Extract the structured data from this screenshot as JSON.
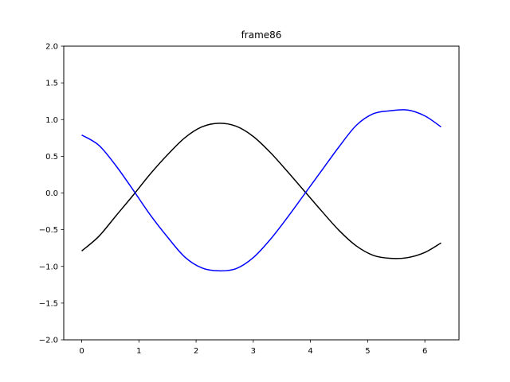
{
  "chart_data": {
    "type": "line",
    "title": "frame86",
    "xlabel": "",
    "ylabel": "",
    "xlim": [
      -0.314,
      6.597
    ],
    "ylim": [
      -2.0,
      2.0
    ],
    "xticks": [
      0,
      1,
      2,
      3,
      4,
      5,
      6
    ],
    "xtick_labels": [
      "0",
      "1",
      "2",
      "3",
      "4",
      "5",
      "6"
    ],
    "yticks": [
      -2.0,
      -1.5,
      -1.0,
      -0.5,
      0.0,
      0.5,
      1.0,
      1.5,
      2.0
    ],
    "ytick_labels": [
      "−2.0",
      "−1.5",
      "−1.0",
      "−0.5",
      "0.0",
      "0.5",
      "1.0",
      "1.5",
      "2.0"
    ],
    "grid": false,
    "legend": "none",
    "series": [
      {
        "color": "#000000",
        "x": [
          0.0,
          0.3,
          0.6,
          0.9,
          1.2,
          1.5,
          1.8,
          2.1,
          2.4,
          2.7,
          3.0,
          3.3,
          3.6,
          3.9,
          4.2,
          4.5,
          4.8,
          5.1,
          5.4,
          5.7,
          6.0,
          6.283
        ],
        "y": [
          -0.79,
          -0.59,
          -0.31,
          -0.03,
          0.26,
          0.52,
          0.75,
          0.9,
          0.95,
          0.91,
          0.77,
          0.55,
          0.29,
          0.02,
          -0.25,
          -0.51,
          -0.72,
          -0.85,
          -0.89,
          -0.88,
          -0.81,
          -0.68
        ]
      },
      {
        "color": "#0000ff",
        "x": [
          0.0,
          0.3,
          0.6,
          0.9,
          1.2,
          1.5,
          1.8,
          2.1,
          2.4,
          2.7,
          3.0,
          3.3,
          3.6,
          3.9,
          4.2,
          4.5,
          4.8,
          5.1,
          5.4,
          5.7,
          6.0,
          6.283
        ],
        "y": [
          0.79,
          0.65,
          0.37,
          0.04,
          -0.3,
          -0.6,
          -0.87,
          -1.02,
          -1.06,
          -1.03,
          -0.88,
          -0.63,
          -0.33,
          -0.01,
          0.31,
          0.63,
          0.92,
          1.08,
          1.12,
          1.13,
          1.05,
          0.9
        ]
      }
    ]
  }
}
